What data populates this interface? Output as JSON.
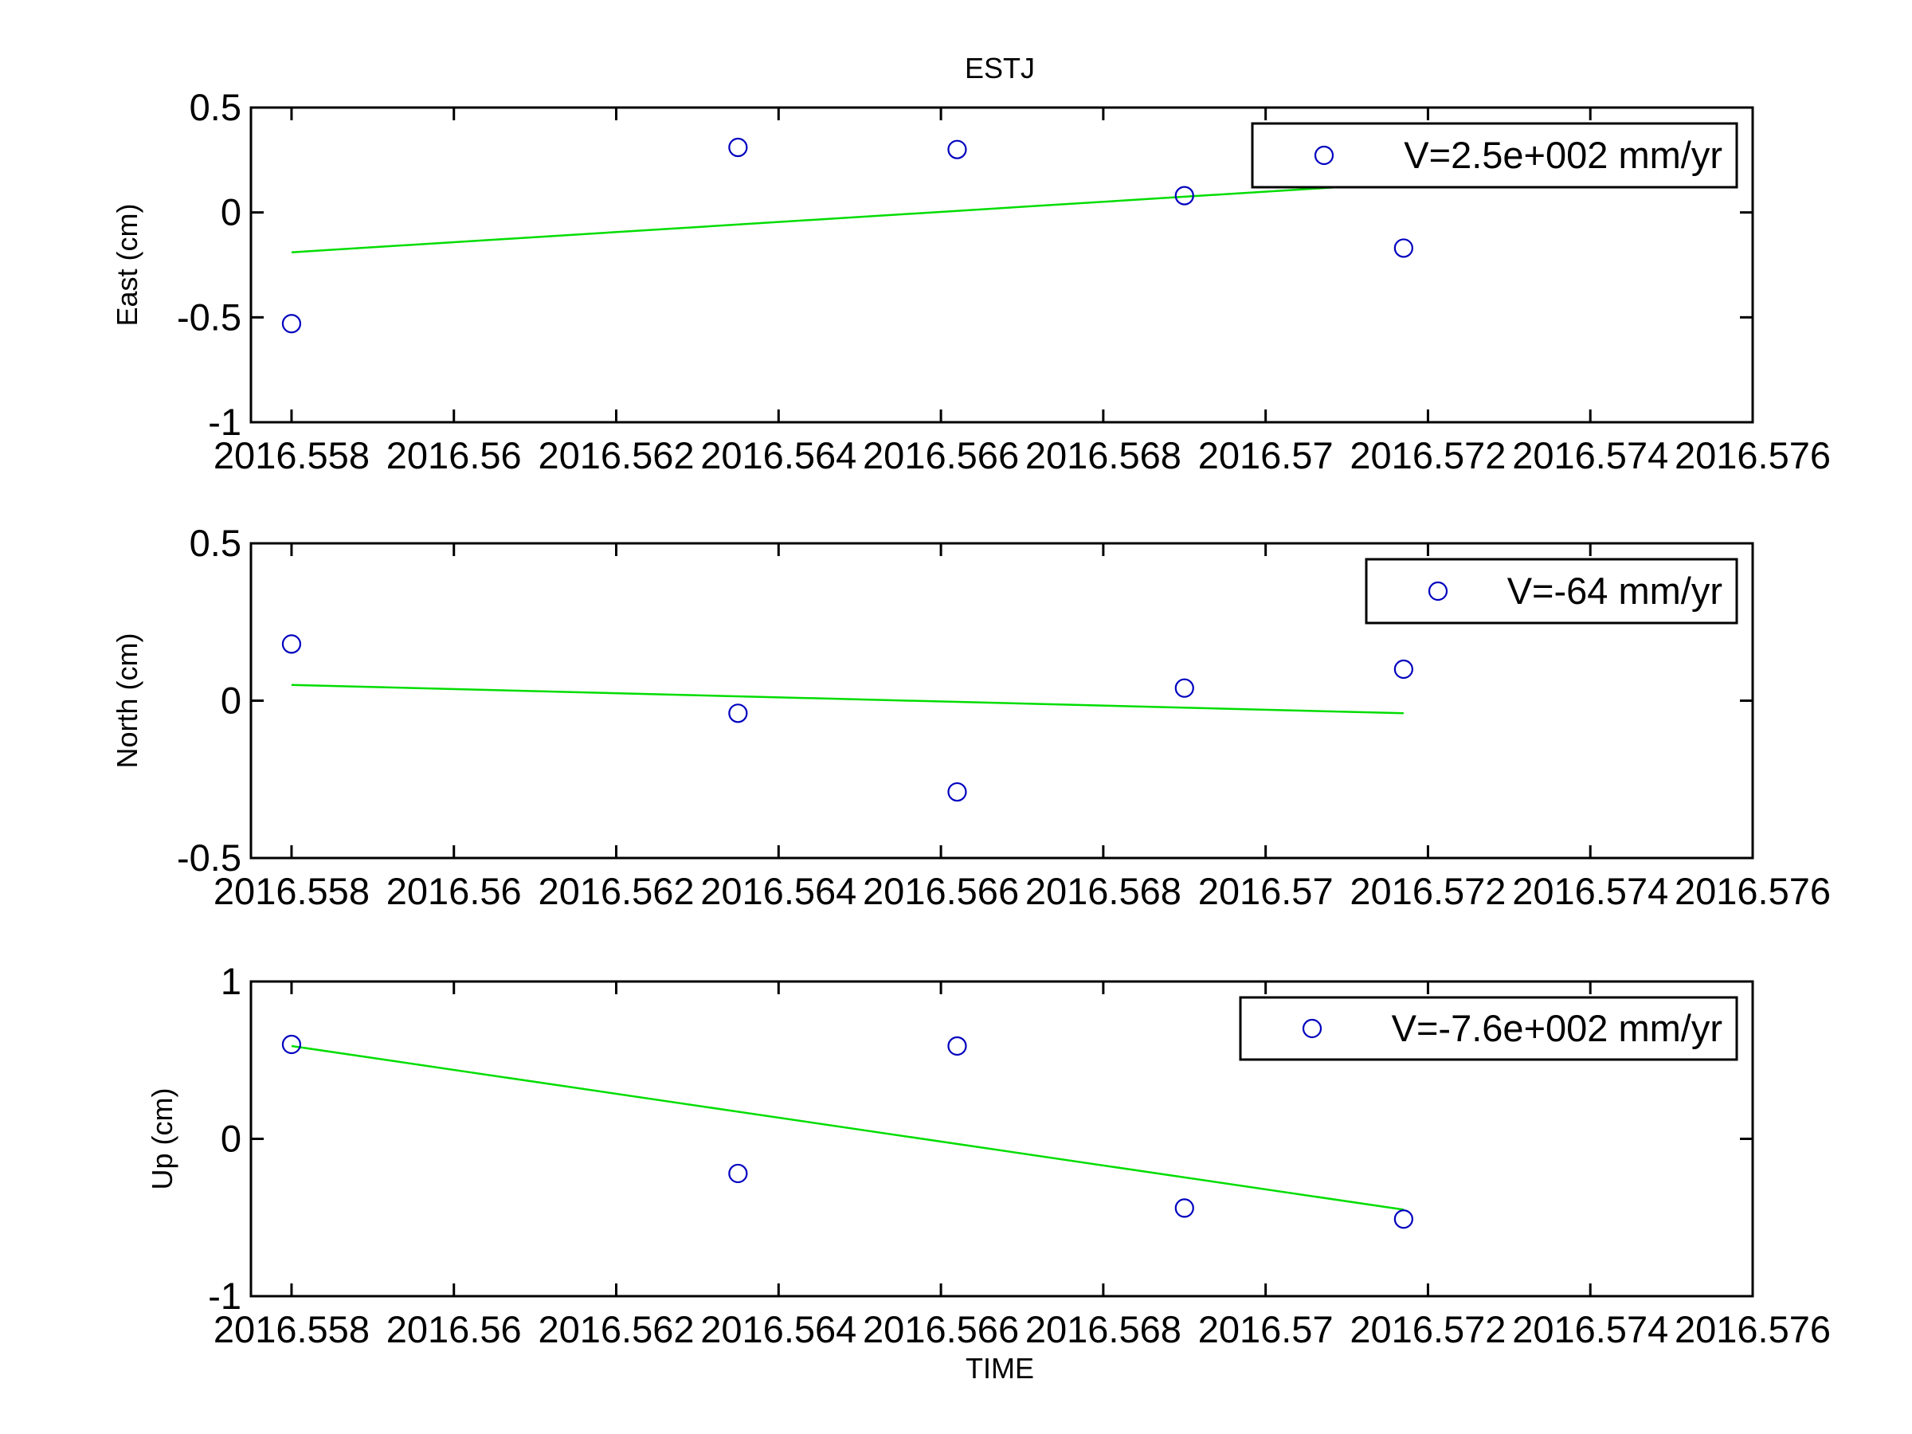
{
  "figure": {
    "title": "ESTJ",
    "xlabel": "TIME"
  },
  "chart_data": [
    {
      "type": "scatter",
      "title": "ESTJ",
      "ylabel": "East (cm)",
      "xlabel": "",
      "xlim": [
        2016.5575,
        2016.576
      ],
      "ylim": [
        -1,
        0.5
      ],
      "xticks": [
        2016.558,
        2016.56,
        2016.562,
        2016.564,
        2016.566,
        2016.568,
        2016.57,
        2016.572,
        2016.574,
        2016.576
      ],
      "xtick_labels": [
        "2016.558",
        "2016.56",
        "2016.562",
        "2016.564",
        "2016.566",
        "2016.568",
        "2016.57",
        "2016.572",
        "2016.574",
        "2016.576"
      ],
      "yticks": [
        -1,
        -0.5,
        0,
        0.5
      ],
      "ytick_labels": [
        "-1",
        "-0.5",
        "0",
        "0.5"
      ],
      "series": [
        {
          "name": "V=2.5e+002 mm/yr",
          "marker": "circle",
          "color": "#0000bf",
          "x": [
            2016.558,
            2016.5635,
            2016.5662,
            2016.569,
            2016.5717
          ],
          "y": [
            -0.53,
            0.31,
            0.3,
            0.08,
            -0.17
          ]
        }
      ],
      "fit_line": {
        "color": "#00dd00",
        "x": [
          2016.558,
          2016.5717
        ],
        "y": [
          -0.19,
          0.14
        ]
      },
      "legend": {
        "position": "top-right"
      },
      "grid": false
    },
    {
      "type": "scatter",
      "title": "",
      "ylabel": "North (cm)",
      "xlabel": "",
      "xlim": [
        2016.5575,
        2016.576
      ],
      "ylim": [
        -0.5,
        0.5
      ],
      "xticks": [
        2016.558,
        2016.56,
        2016.562,
        2016.564,
        2016.566,
        2016.568,
        2016.57,
        2016.572,
        2016.574,
        2016.576
      ],
      "xtick_labels": [
        "2016.558",
        "2016.56",
        "2016.562",
        "2016.564",
        "2016.566",
        "2016.568",
        "2016.57",
        "2016.572",
        "2016.574",
        "2016.576"
      ],
      "yticks": [
        -0.5,
        0,
        0.5
      ],
      "ytick_labels": [
        "-0.5",
        "0",
        "0.5"
      ],
      "series": [
        {
          "name": "V=-64 mm/yr",
          "marker": "circle",
          "color": "#0000bf",
          "x": [
            2016.558,
            2016.5635,
            2016.5662,
            2016.569,
            2016.5717
          ],
          "y": [
            0.18,
            -0.04,
            -0.29,
            0.04,
            0.1
          ]
        }
      ],
      "fit_line": {
        "color": "#00dd00",
        "x": [
          2016.558,
          2016.5717
        ],
        "y": [
          0.05,
          -0.04
        ]
      },
      "legend": {
        "position": "top-right"
      },
      "grid": false
    },
    {
      "type": "scatter",
      "title": "",
      "ylabel": "Up (cm)",
      "xlabel": "TIME",
      "xlim": [
        2016.5575,
        2016.576
      ],
      "ylim": [
        -1,
        1
      ],
      "xticks": [
        2016.558,
        2016.56,
        2016.562,
        2016.564,
        2016.566,
        2016.568,
        2016.57,
        2016.572,
        2016.574,
        2016.576
      ],
      "xtick_labels": [
        "2016.558",
        "2016.56",
        "2016.562",
        "2016.564",
        "2016.566",
        "2016.568",
        "2016.57",
        "2016.572",
        "2016.574",
        "2016.576"
      ],
      "yticks": [
        -1,
        0,
        1
      ],
      "ytick_labels": [
        "-1",
        "0",
        "1"
      ],
      "series": [
        {
          "name": "V=-7.6e+002 mm/yr",
          "marker": "circle",
          "color": "#0000bf",
          "x": [
            2016.558,
            2016.5635,
            2016.5662,
            2016.569,
            2016.5717
          ],
          "y": [
            0.6,
            -0.22,
            0.59,
            -0.44,
            -0.51
          ]
        }
      ],
      "fit_line": {
        "color": "#00dd00",
        "x": [
          2016.558,
          2016.5717
        ],
        "y": [
          0.59,
          -0.45
        ]
      },
      "legend": {
        "position": "top-right"
      },
      "grid": false
    }
  ]
}
